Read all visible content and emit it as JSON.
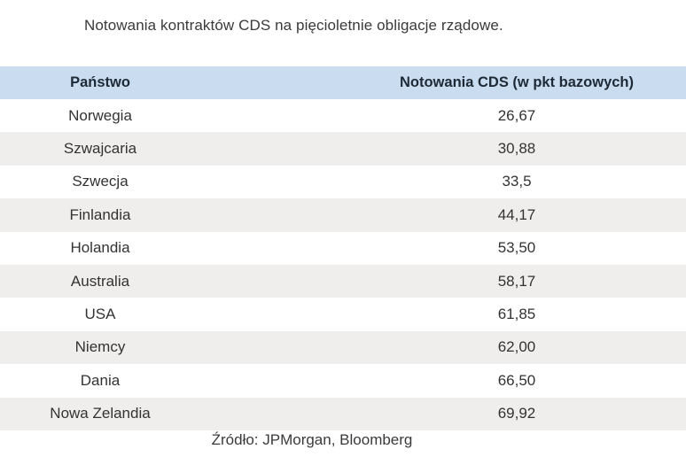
{
  "title": "Notowania kontraktów CDS na pięcioletnie obligacje rządowe.",
  "table": {
    "headers": {
      "country": "Państwo",
      "value": "Notowania CDS (w pkt bazowych)"
    },
    "rows": [
      {
        "country": "Norwegia",
        "value": "26,67"
      },
      {
        "country": "Szwajcaria",
        "value": "30,88"
      },
      {
        "country": "Szwecja",
        "value": "33,5"
      },
      {
        "country": "Finlandia",
        "value": "44,17"
      },
      {
        "country": "Holandia",
        "value": "53,50"
      },
      {
        "country": "Australia",
        "value": "58,17"
      },
      {
        "country": "USA",
        "value": "61,85"
      },
      {
        "country": "Niemcy",
        "value": "62,00"
      },
      {
        "country": "Dania",
        "value": "66,50"
      },
      {
        "country": "Nowa Zelandia",
        "value": "69,92"
      }
    ]
  },
  "source": "Źródło: JPMorgan, Bloomberg",
  "colors": {
    "header_bg": "#c9dcf0",
    "stripe_bg": "#efeeec",
    "text": "#333333"
  }
}
